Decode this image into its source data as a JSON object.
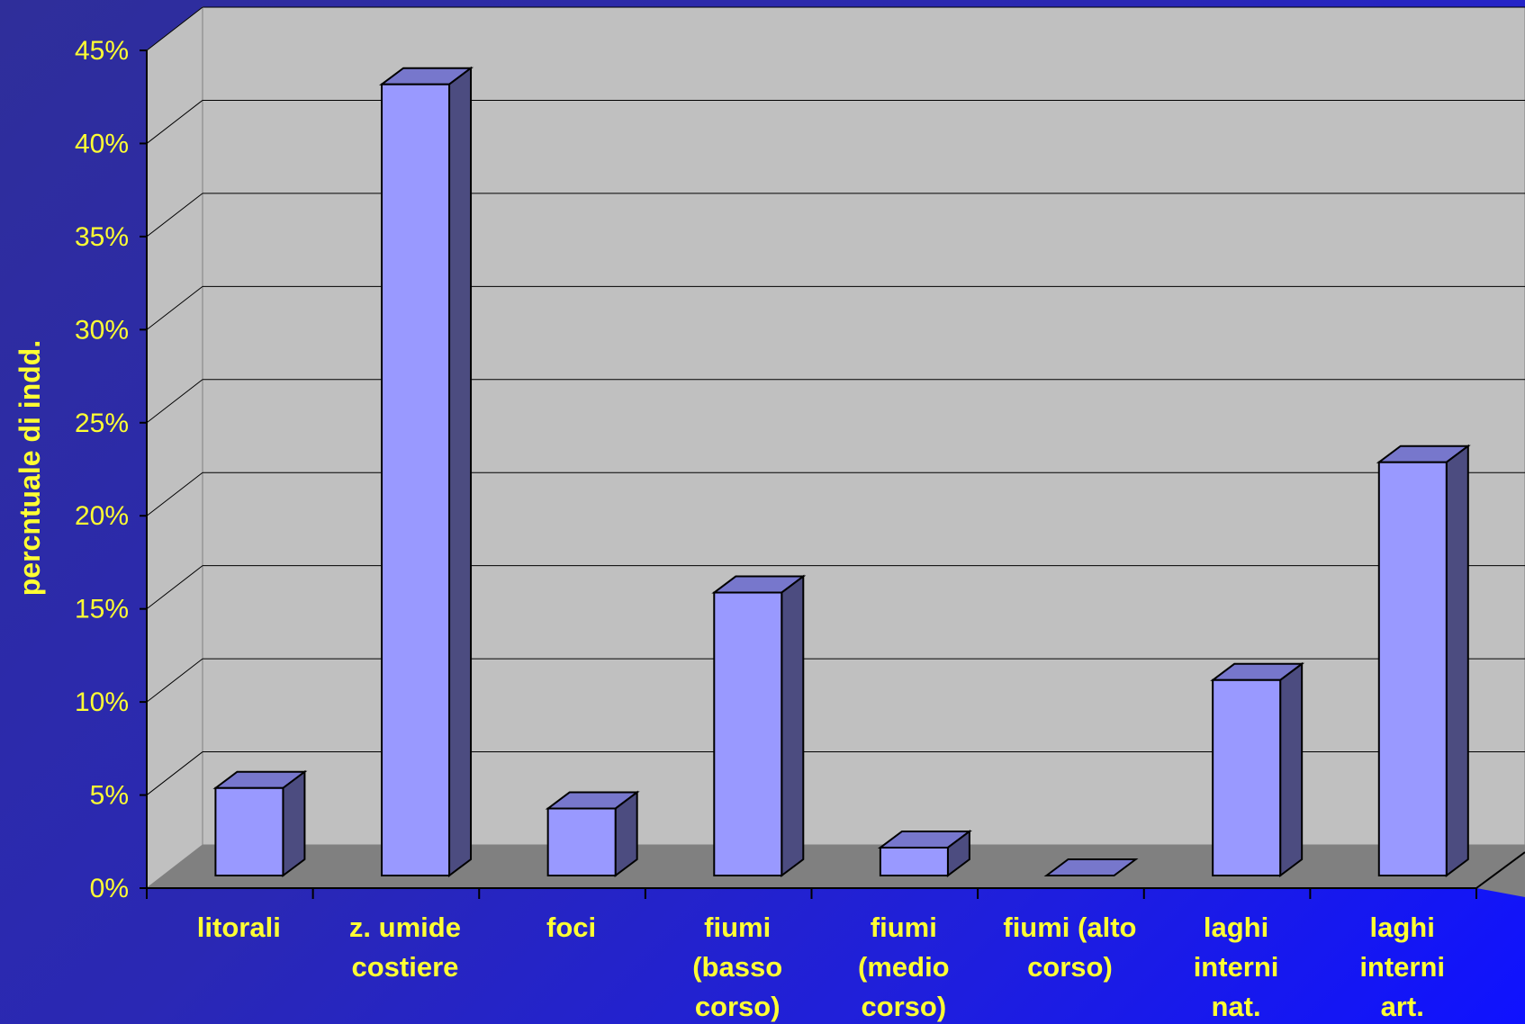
{
  "chart_data": {
    "type": "bar",
    "style": "3d-column",
    "title": "",
    "xlabel": "",
    "ylabel": "percntuale di indd.",
    "ylim": [
      0,
      45
    ],
    "y_ticks": [
      "0%",
      "5%",
      "10%",
      "15%",
      "20%",
      "25%",
      "30%",
      "35%",
      "40%",
      "45%"
    ],
    "categories": [
      [
        "litorali"
      ],
      [
        "z. umide",
        "costiere"
      ],
      [
        "foci"
      ],
      [
        "fiumi",
        "(basso",
        "corso)"
      ],
      [
        "fiumi",
        "(medio",
        "corso)"
      ],
      [
        "fiumi (alto",
        "corso)"
      ],
      [
        "laghi",
        "interni",
        "nat."
      ],
      [
        "laghi",
        "interni",
        "art."
      ]
    ],
    "values": [
      4.7,
      42.5,
      3.6,
      15.2,
      1.5,
      0,
      10.5,
      22.2
    ],
    "grid": true,
    "legend": "none",
    "colors": {
      "bar_front": "#9999ff",
      "bar_top": "#7777cc",
      "bar_side": "#4c4c80",
      "wall": "#c0c0c0",
      "floor": "#808080",
      "text": "#ffff33"
    }
  }
}
